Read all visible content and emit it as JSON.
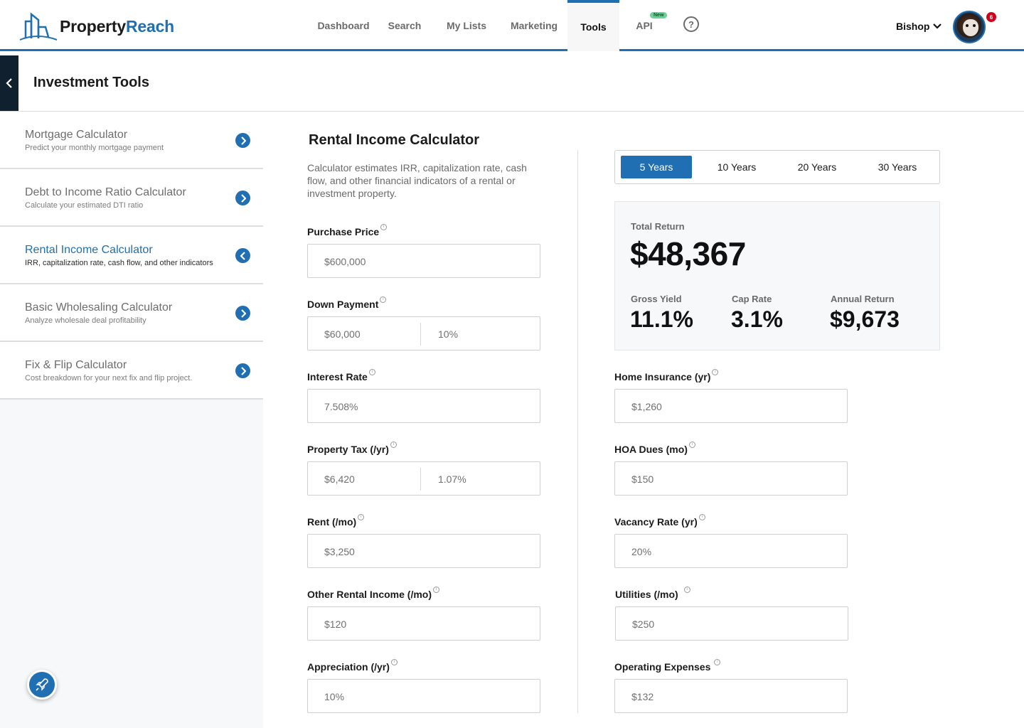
{
  "brand": {
    "name_part1": "Property",
    "name_part2": "Reach"
  },
  "nav": {
    "items": [
      {
        "label": "Dashboard"
      },
      {
        "label": "Search"
      },
      {
        "label": "My Lists"
      },
      {
        "label": "Marketing"
      },
      {
        "label": "Tools"
      },
      {
        "label": "API"
      }
    ],
    "api_badge": "New",
    "help_glyph": "?"
  },
  "user": {
    "name": "Bishop",
    "notifications": "6"
  },
  "page": {
    "title": "Investment Tools"
  },
  "sidebar": {
    "items": [
      {
        "title": "Mortgage Calculator",
        "subtitle": "Predict your monthly mortgage payment"
      },
      {
        "title": "Debt to Income Ratio Calculator",
        "subtitle": "Calculate your estimated DTI ratio"
      },
      {
        "title": "Rental Income Calculator",
        "subtitle": "IRR, capitalization rate, cash flow, and other indicators"
      },
      {
        "title": "Basic Wholesaling Calculator",
        "subtitle": "Analyze wholesale deal profitability"
      },
      {
        "title": "Fix & Flip Calculator",
        "subtitle": "Cost breakdown for your next fix and flip project."
      }
    ]
  },
  "calculator": {
    "title": "Rental Income Calculator",
    "description": "Calculator estimates IRR, capitalization rate, cash flow, and other financial indicators of a rental or investment property.",
    "fields_left": [
      {
        "label": "Purchase Price",
        "value": "$600,000"
      },
      {
        "label": "Down Payment",
        "value": "$60,000",
        "value2": "10%"
      },
      {
        "label": "Interest Rate",
        "value": "7.508%"
      },
      {
        "label": "Property Tax (/yr)",
        "value": "$6,420",
        "value2": "1.07%"
      },
      {
        "label": "Rent (/mo)",
        "value": "$3,250"
      },
      {
        "label": "Other Rental Income (/mo)",
        "value": "$120"
      },
      {
        "label": "Appreciation (/yr)",
        "value": "10%"
      }
    ],
    "fields_right": [
      {
        "label": "Home Insurance (yr)",
        "value": "$1,260"
      },
      {
        "label": "HOA Dues (mo)",
        "value": "$150"
      },
      {
        "label": "Vacancy Rate (yr)",
        "value": "20%"
      },
      {
        "label": "Utilities (/mo)",
        "value": "$250"
      },
      {
        "label": "Operating Expenses",
        "value": "$132"
      }
    ]
  },
  "year_tabs": [
    {
      "label": "5 Years",
      "active": true
    },
    {
      "label": "10 Years"
    },
    {
      "label": "20 Years"
    },
    {
      "label": "30 Years"
    }
  ],
  "summary": {
    "total_return_label": "Total Return",
    "total_return_value": "$48,367",
    "metrics": [
      {
        "label": "Gross Yield",
        "value": "11.1%"
      },
      {
        "label": "Cap Rate",
        "value": "3.1%"
      },
      {
        "label": "Annual Return",
        "value": "$9,673"
      }
    ]
  },
  "colors": {
    "accent": "#1f6fb2",
    "dark": "#11202e",
    "badge": "#d0021b"
  },
  "icons": [
    "building-logo-icon",
    "help-icon",
    "chevron-down-icon",
    "chevron-left-icon",
    "chevron-right-icon",
    "rocket-icon",
    "info-icon"
  ]
}
